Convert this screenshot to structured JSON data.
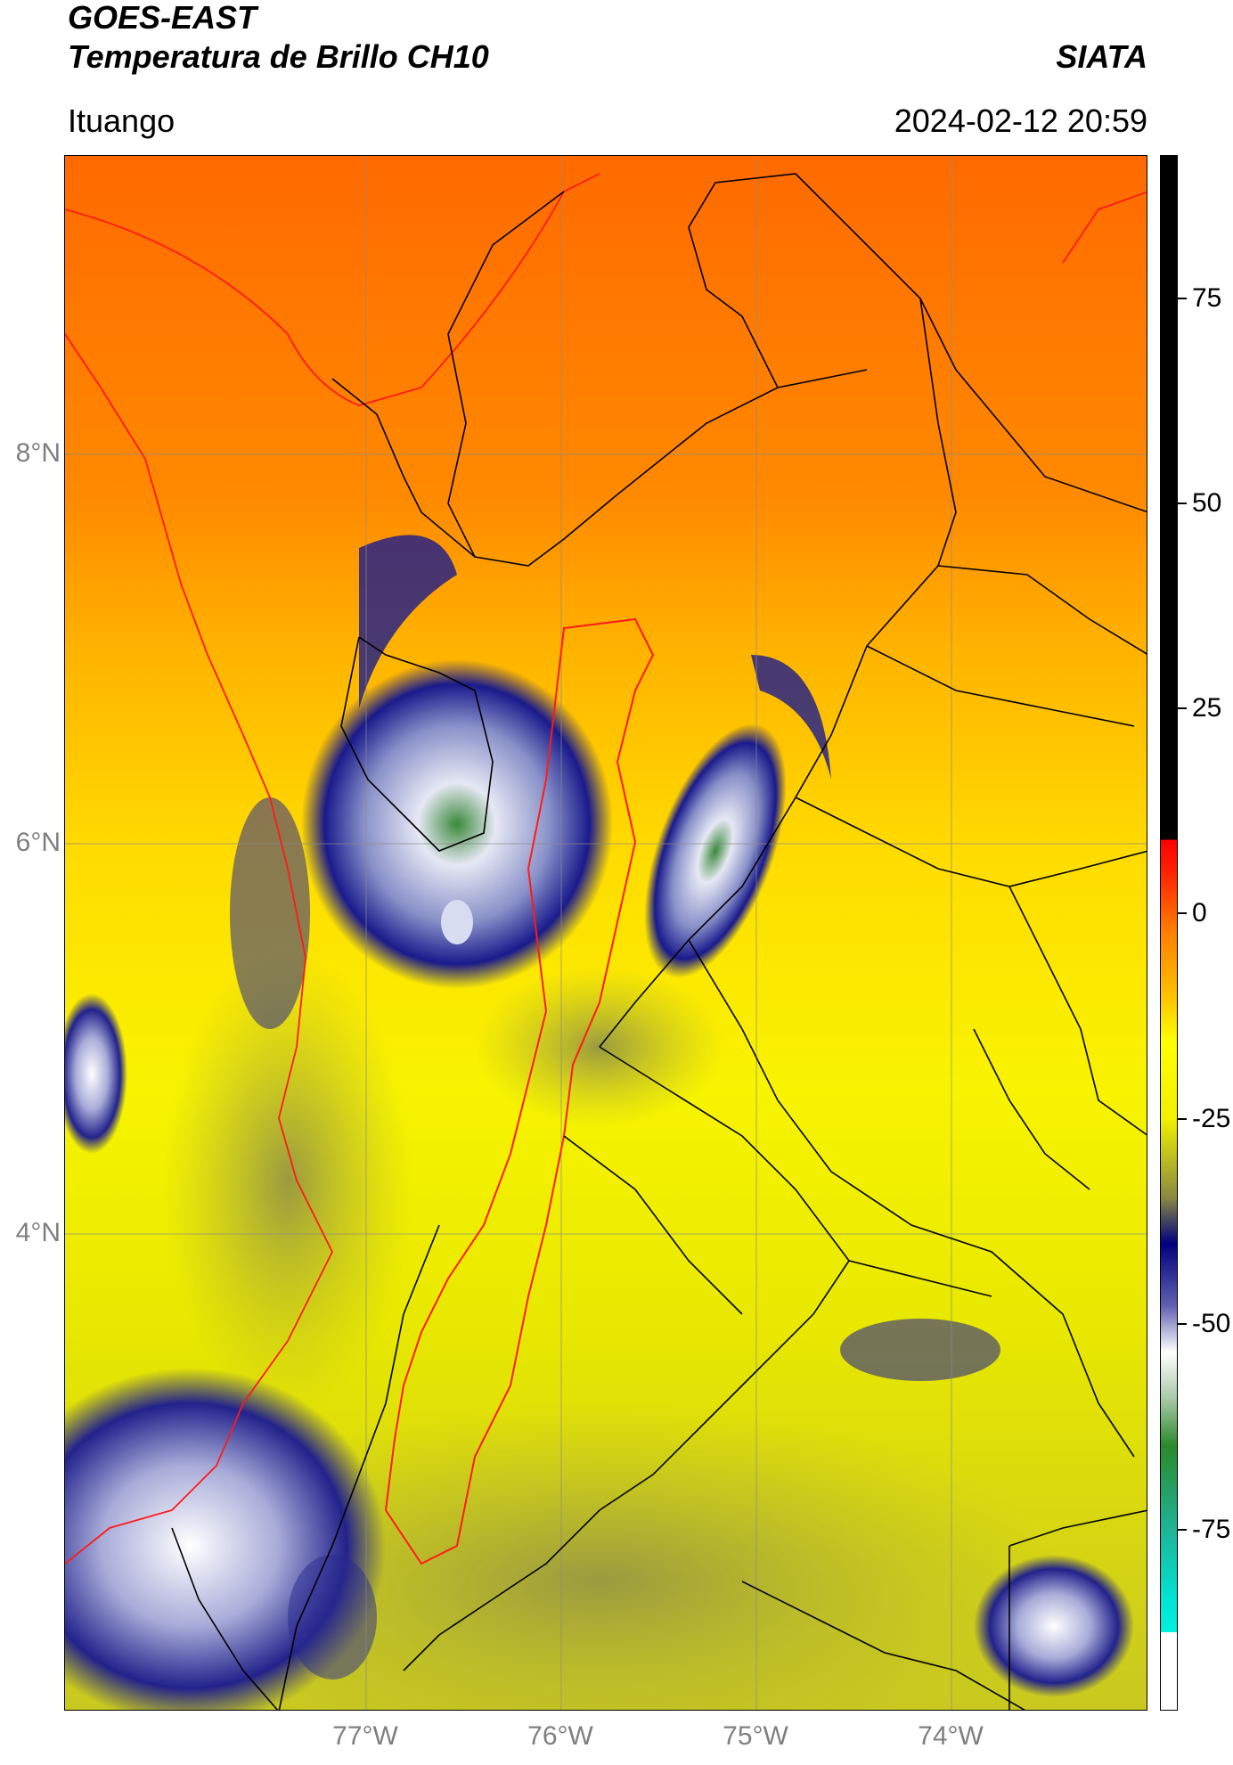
{
  "header": {
    "title_line1": "GOES-EAST",
    "title_line2": "Temperatura de Brillo CH10",
    "brand": "SIATA",
    "region": "Ituango",
    "timestamp": "2024-02-12 20:59"
  },
  "map": {
    "lat_labels": [
      "8°N",
      "6°N",
      "4°N"
    ],
    "lon_labels": [
      "77°W",
      "76°W",
      "75°W",
      "74°W"
    ],
    "colors": {
      "warm": "#ff7a00",
      "mid": "#ffd400",
      "cold_yellow": "#f5f500",
      "olive": "#a0a030",
      "cloud_blue": "#1a1a8c",
      "cloud_light": "#d8dcf0",
      "cloud_green": "#3a8a3a",
      "border_black": "#000000",
      "border_red": "#ff1a1a"
    }
  },
  "colorbar": {
    "ticks": [
      "75",
      "50",
      "25",
      "0",
      "-25",
      "-50",
      "-75"
    ],
    "colors": {
      "black_top": "#000000",
      "red": "#ff0000",
      "orange": "#ff8000",
      "yellow": "#ffff00",
      "olive": "#7f7f3f",
      "dark_blue": "#00007f",
      "white": "#ffffff",
      "green": "#2a8a2a",
      "cyan": "#00e5d5"
    }
  }
}
